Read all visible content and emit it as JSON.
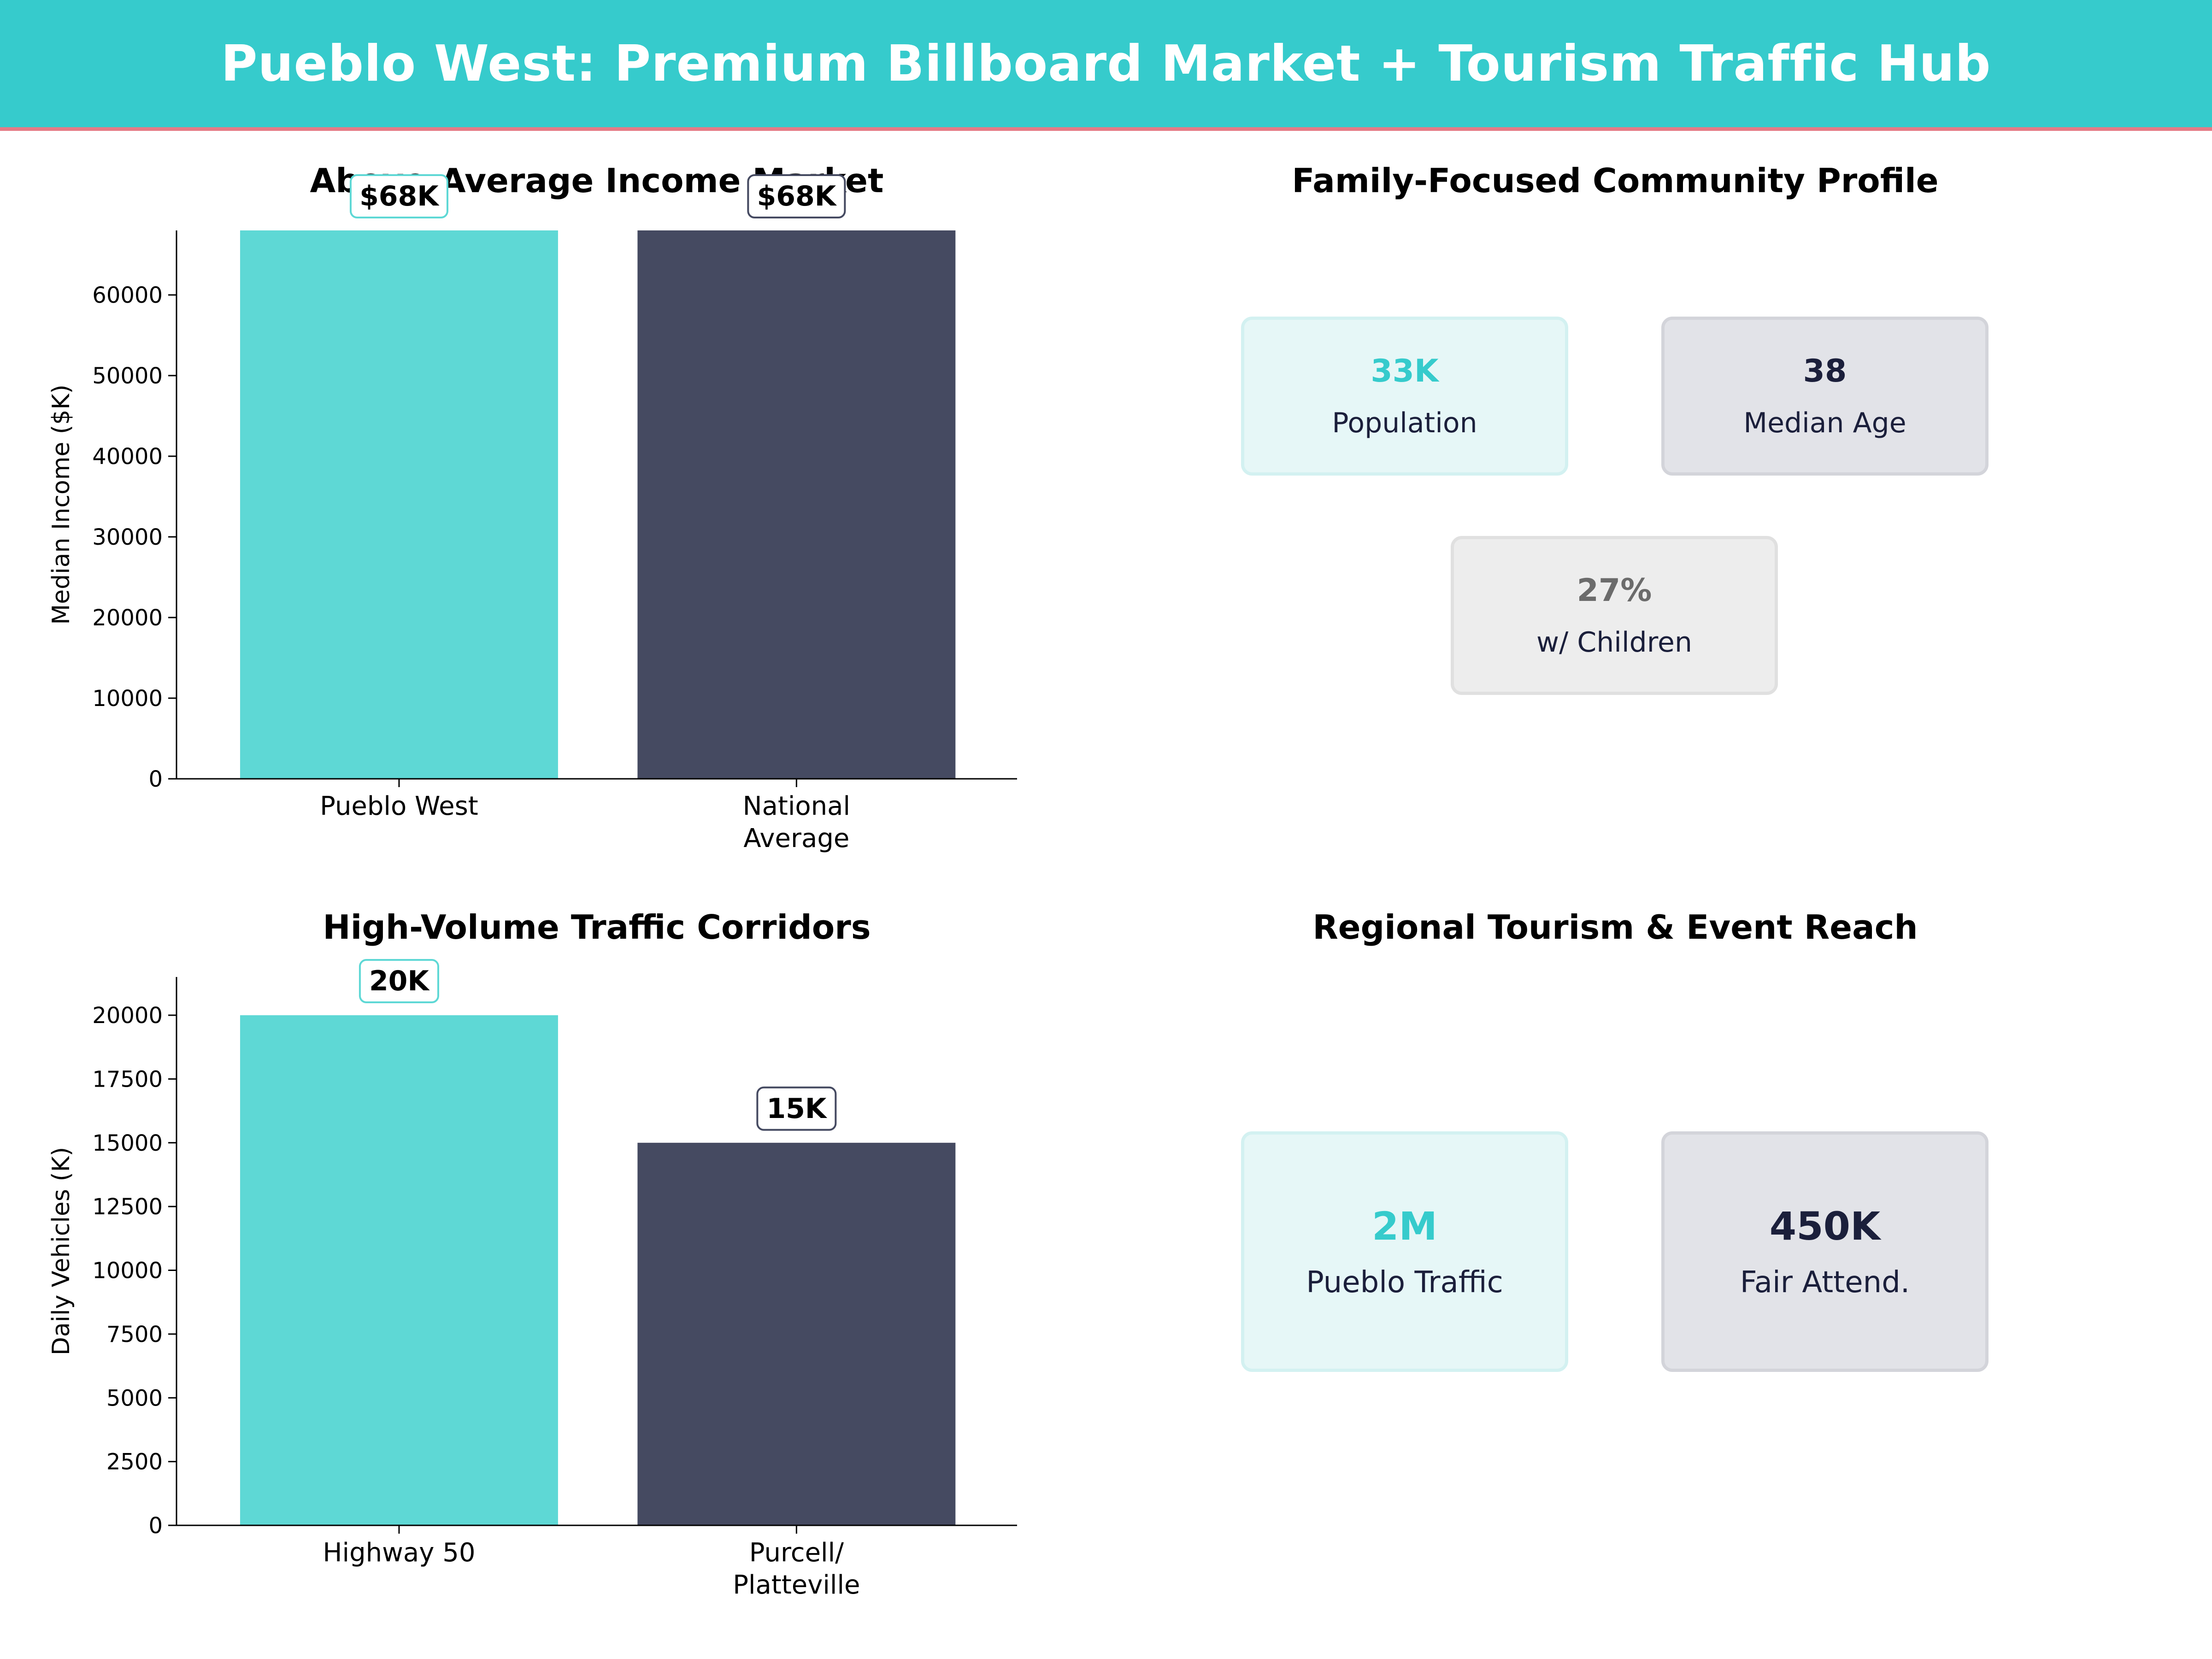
{
  "header": {
    "title": "Pueblo West: Premium Billboard Market + Tourism Traffic Hub"
  },
  "colors": {
    "teal": "#5ed8d5",
    "navy": "#454a61",
    "banner": "#36cbcc",
    "accent": "#e57b86"
  },
  "chart_data": [
    {
      "type": "bar",
      "title": "Above-Average Income Market",
      "categories": [
        "Pueblo West",
        "National\nAverage"
      ],
      "values": [
        68000,
        68000
      ],
      "data_labels": [
        "$68K",
        "$68K"
      ],
      "ylabel": "Median Income ($K)",
      "xlabel": "",
      "ylim": [
        0,
        68000
      ],
      "yticks": [
        0,
        10000,
        20000,
        30000,
        40000,
        50000,
        60000
      ],
      "colors": [
        "#5ed8d5",
        "#454a61"
      ],
      "grid": false
    },
    {
      "type": "bar",
      "title": "High-Volume Traffic Corridors",
      "categories": [
        "Highway 50",
        "Purcell/\nPlatteville"
      ],
      "values": [
        20000,
        15000
      ],
      "data_labels": [
        "20K",
        "15K"
      ],
      "ylabel": "Daily Vehicles (K)",
      "xlabel": "",
      "ylim": [
        0,
        21500
      ],
      "yticks": [
        0,
        2500,
        5000,
        7500,
        10000,
        12500,
        15000,
        17500,
        20000
      ],
      "colors": [
        "#5ed8d5",
        "#454a61"
      ],
      "grid": false
    }
  ],
  "community": {
    "title": "Family-Focused Community Profile",
    "cards": [
      {
        "value": "33K",
        "label": "Population"
      },
      {
        "value": "38",
        "label": "Median Age"
      },
      {
        "value": "27%",
        "label": "w/ Children"
      }
    ]
  },
  "tourism": {
    "title": "Regional Tourism & Event Reach",
    "cards": [
      {
        "value": "2M",
        "label": "Pueblo Traffic"
      },
      {
        "value": "450K",
        "label": "Fair Attend."
      }
    ]
  }
}
